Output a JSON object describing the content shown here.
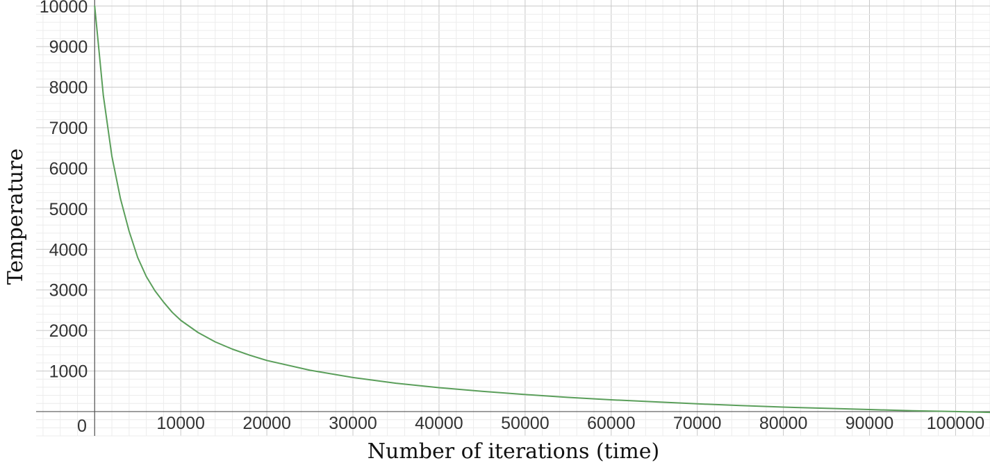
{
  "chart_data": {
    "type": "line",
    "xlabel": "Number of iterations (time)",
    "ylabel": "Temperature",
    "xlim": [
      -6800,
      104000
    ],
    "ylim": [
      -600,
      10150
    ],
    "x_ticks": [
      10000,
      20000,
      30000,
      40000,
      50000,
      60000,
      70000,
      80000,
      90000,
      100000
    ],
    "x_tick_labels": [
      "10000",
      "20000",
      "30000",
      "40000",
      "50000",
      "60000",
      "70000",
      "80000",
      "90000",
      "100000"
    ],
    "y_ticks": [
      1000,
      2000,
      3000,
      4000,
      5000,
      6000,
      7000,
      8000,
      9000,
      10000
    ],
    "y_tick_labels": [
      "1000",
      "2000",
      "3000",
      "4000",
      "5000",
      "6000",
      "7000",
      "8000",
      "9000",
      "10000"
    ],
    "origin_label": "0",
    "grid": true,
    "series": [
      {
        "color": "#5a9e5a",
        "x": [
          0,
          1000,
          2000,
          3000,
          4000,
          5000,
          6000,
          7000,
          8000,
          9000,
          10000,
          12000,
          14000,
          16000,
          18000,
          20000,
          25000,
          30000,
          35000,
          40000,
          45000,
          50000,
          55000,
          60000,
          65000,
          70000,
          75000,
          80000,
          85000,
          90000,
          95000,
          100000,
          104000
        ],
        "y": [
          10000,
          7800,
          6300,
          5250,
          4450,
          3800,
          3330,
          2980,
          2700,
          2450,
          2250,
          1950,
          1720,
          1540,
          1390,
          1260,
          1020,
          840,
          700,
          590,
          500,
          420,
          350,
          290,
          240,
          190,
          150,
          110,
          80,
          50,
          20,
          0,
          -20
        ]
      }
    ]
  }
}
